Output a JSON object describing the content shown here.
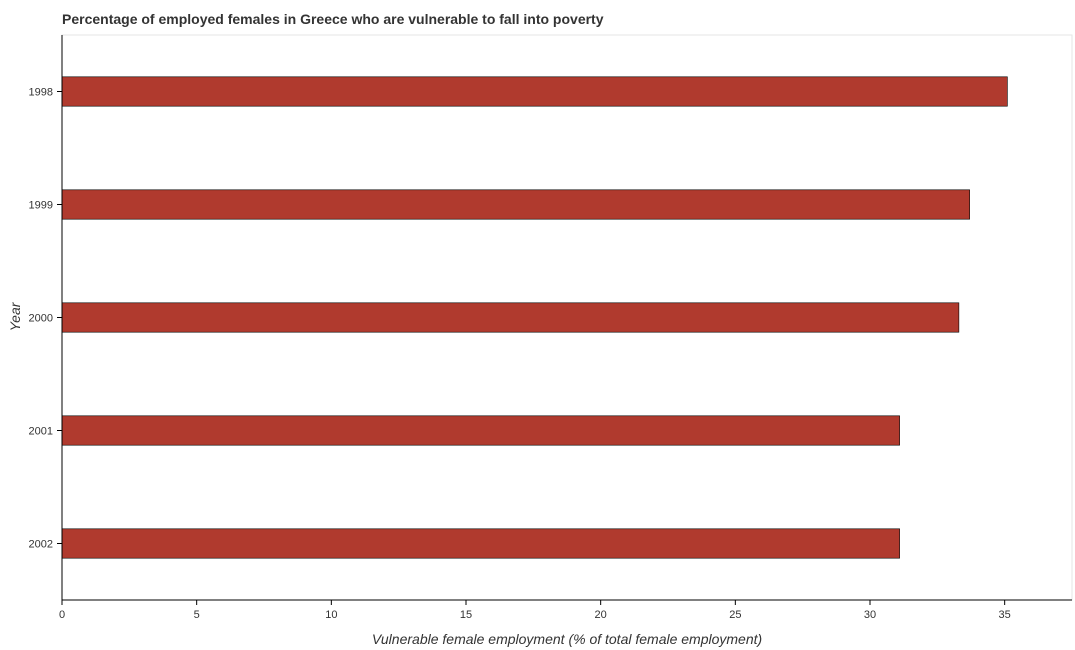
{
  "chart_data": {
    "type": "bar",
    "orientation": "horizontal",
    "title": "Percentage of employed females in Greece who are vulnerable to fall into poverty",
    "xlabel": "Vulnerable female employment (% of total female employment)",
    "ylabel": "Year",
    "categories": [
      "1998",
      "1999",
      "2000",
      "2001",
      "2002"
    ],
    "values": [
      35.1,
      33.7,
      33.3,
      31.1,
      31.1
    ],
    "xlim": [
      0,
      37.5
    ],
    "x_ticks": [
      0,
      5,
      10,
      15,
      20,
      25,
      30,
      35
    ],
    "grid": false,
    "colors": {
      "bar_fill": "#b03a2e",
      "bar_stroke": "#000000"
    }
  }
}
